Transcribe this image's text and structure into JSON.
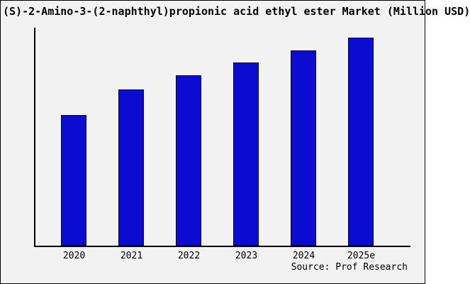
{
  "chart_data": {
    "type": "bar",
    "title": "(S)-2-Amino-3-(2-naphthyl)propionic acid ethyl ester Market (Million USD)",
    "categories": [
      "2020",
      "2021",
      "2022",
      "2023",
      "2024",
      "2025e"
    ],
    "values": [
      63,
      75,
      82,
      88,
      94,
      100
    ],
    "xlabel": "",
    "ylabel": "",
    "ylim": [
      0,
      104.5
    ],
    "grid": false,
    "legend": "none",
    "y_tick_labels_visible": false
  },
  "footer": {
    "source": "Source: Prof Research"
  },
  "colors": {
    "background": "#f2f2f2",
    "bar_fill": "#0b0bd2",
    "bar_edge": "#000040",
    "axis": "#000000",
    "text": "#000000"
  }
}
